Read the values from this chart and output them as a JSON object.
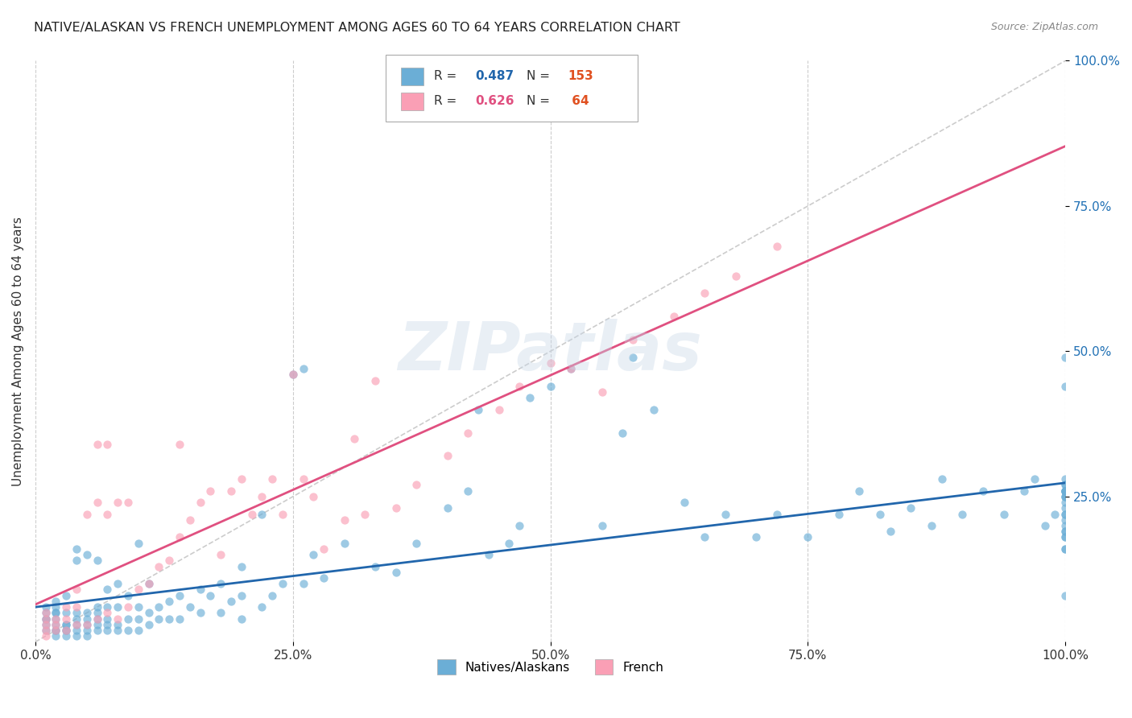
{
  "title": "NATIVE/ALASKAN VS FRENCH UNEMPLOYMENT AMONG AGES 60 TO 64 YEARS CORRELATION CHART",
  "source": "Source: ZipAtlas.com",
  "ylabel": "Unemployment Among Ages 60 to 64 years",
  "xlim": [
    0,
    1.0
  ],
  "ylim": [
    0,
    1.0
  ],
  "xtick_labels": [
    "0.0%",
    "25.0%",
    "50.0%",
    "75.0%",
    "100.0%"
  ],
  "xtick_values": [
    0.0,
    0.25,
    0.5,
    0.75,
    1.0
  ],
  "right_ytick_labels": [
    "25.0%",
    "50.0%",
    "75.0%",
    "100.0%"
  ],
  "right_ytick_values": [
    0.25,
    0.5,
    0.75,
    1.0
  ],
  "watermark": "ZIPatlas",
  "legend_label1": "Natives/Alaskans",
  "legend_label2": "French",
  "R1": 0.487,
  "N1": 153,
  "R2": 0.626,
  "N2": 64,
  "color_blue": "#6baed6",
  "color_pink": "#fa9fb5",
  "color_diagonal": "#cccccc",
  "color_blue_line": "#2166ac",
  "color_pink_line": "#e05080",
  "scatter_blue_alpha": 0.65,
  "scatter_pink_alpha": 0.65,
  "native_x": [
    0.01,
    0.01,
    0.01,
    0.01,
    0.01,
    0.01,
    0.02,
    0.02,
    0.02,
    0.02,
    0.02,
    0.02,
    0.02,
    0.02,
    0.02,
    0.03,
    0.03,
    0.03,
    0.03,
    0.03,
    0.03,
    0.03,
    0.04,
    0.04,
    0.04,
    0.04,
    0.04,
    0.04,
    0.04,
    0.05,
    0.05,
    0.05,
    0.05,
    0.05,
    0.05,
    0.06,
    0.06,
    0.06,
    0.06,
    0.06,
    0.06,
    0.07,
    0.07,
    0.07,
    0.07,
    0.07,
    0.08,
    0.08,
    0.08,
    0.08,
    0.09,
    0.09,
    0.09,
    0.1,
    0.1,
    0.1,
    0.1,
    0.11,
    0.11,
    0.11,
    0.12,
    0.12,
    0.13,
    0.13,
    0.14,
    0.14,
    0.15,
    0.16,
    0.16,
    0.17,
    0.18,
    0.18,
    0.19,
    0.2,
    0.2,
    0.2,
    0.22,
    0.22,
    0.23,
    0.24,
    0.25,
    0.26,
    0.26,
    0.27,
    0.28,
    0.3,
    0.33,
    0.35,
    0.37,
    0.4,
    0.42,
    0.43,
    0.44,
    0.46,
    0.47,
    0.48,
    0.5,
    0.52,
    0.55,
    0.57,
    0.58,
    0.6,
    0.63,
    0.65,
    0.67,
    0.7,
    0.72,
    0.75,
    0.78,
    0.8,
    0.82,
    0.83,
    0.85,
    0.87,
    0.88,
    0.9,
    0.92,
    0.94,
    0.96,
    0.97,
    0.98,
    0.99,
    1.0,
    1.0,
    1.0,
    1.0,
    1.0,
    1.0,
    1.0,
    1.0,
    1.0,
    1.0,
    1.0,
    1.0,
    1.0,
    1.0,
    1.0,
    1.0,
    1.0,
    1.0,
    1.0,
    1.0,
    1.0,
    1.0,
    1.0,
    1.0,
    1.0,
    1.0,
    1.0
  ],
  "native_y": [
    0.02,
    0.03,
    0.04,
    0.04,
    0.05,
    0.06,
    0.01,
    0.02,
    0.02,
    0.03,
    0.04,
    0.05,
    0.05,
    0.06,
    0.07,
    0.01,
    0.02,
    0.02,
    0.03,
    0.03,
    0.05,
    0.08,
    0.01,
    0.02,
    0.03,
    0.04,
    0.05,
    0.14,
    0.16,
    0.01,
    0.02,
    0.03,
    0.04,
    0.05,
    0.15,
    0.02,
    0.03,
    0.04,
    0.05,
    0.06,
    0.14,
    0.02,
    0.03,
    0.04,
    0.06,
    0.09,
    0.02,
    0.03,
    0.06,
    0.1,
    0.02,
    0.04,
    0.08,
    0.02,
    0.04,
    0.06,
    0.17,
    0.03,
    0.05,
    0.1,
    0.04,
    0.06,
    0.04,
    0.07,
    0.04,
    0.08,
    0.06,
    0.05,
    0.09,
    0.08,
    0.05,
    0.1,
    0.07,
    0.04,
    0.08,
    0.13,
    0.06,
    0.22,
    0.08,
    0.1,
    0.46,
    0.47,
    0.1,
    0.15,
    0.11,
    0.17,
    0.13,
    0.12,
    0.17,
    0.23,
    0.26,
    0.4,
    0.15,
    0.17,
    0.2,
    0.42,
    0.44,
    0.47,
    0.2,
    0.36,
    0.49,
    0.4,
    0.24,
    0.18,
    0.22,
    0.18,
    0.22,
    0.18,
    0.22,
    0.26,
    0.22,
    0.19,
    0.23,
    0.2,
    0.28,
    0.22,
    0.26,
    0.22,
    0.26,
    0.28,
    0.2,
    0.22,
    0.26,
    0.21,
    0.23,
    0.22,
    0.24,
    0.25,
    0.26,
    0.27,
    0.25,
    0.26,
    0.26,
    0.27,
    0.25,
    0.26,
    0.26,
    0.28,
    0.18,
    0.19,
    0.2,
    0.22,
    0.16,
    0.18,
    0.19,
    0.08,
    0.44,
    0.49,
    0.16
  ],
  "french_x": [
    0.01,
    0.01,
    0.01,
    0.01,
    0.01,
    0.02,
    0.02,
    0.02,
    0.03,
    0.03,
    0.03,
    0.04,
    0.04,
    0.04,
    0.05,
    0.05,
    0.06,
    0.06,
    0.06,
    0.07,
    0.07,
    0.07,
    0.08,
    0.08,
    0.09,
    0.09,
    0.1,
    0.11,
    0.12,
    0.13,
    0.14,
    0.14,
    0.15,
    0.16,
    0.17,
    0.18,
    0.19,
    0.2,
    0.21,
    0.22,
    0.23,
    0.24,
    0.25,
    0.26,
    0.27,
    0.28,
    0.3,
    0.31,
    0.32,
    0.33,
    0.35,
    0.37,
    0.4,
    0.42,
    0.45,
    0.47,
    0.5,
    0.52,
    0.55,
    0.58,
    0.62,
    0.65,
    0.68,
    0.72
  ],
  "french_y": [
    0.01,
    0.02,
    0.03,
    0.04,
    0.05,
    0.02,
    0.03,
    0.04,
    0.02,
    0.04,
    0.06,
    0.03,
    0.06,
    0.09,
    0.03,
    0.22,
    0.04,
    0.24,
    0.34,
    0.05,
    0.22,
    0.34,
    0.04,
    0.24,
    0.06,
    0.24,
    0.09,
    0.1,
    0.13,
    0.14,
    0.18,
    0.34,
    0.21,
    0.24,
    0.26,
    0.15,
    0.26,
    0.28,
    0.22,
    0.25,
    0.28,
    0.22,
    0.46,
    0.28,
    0.25,
    0.16,
    0.21,
    0.35,
    0.22,
    0.45,
    0.23,
    0.27,
    0.32,
    0.36,
    0.4,
    0.44,
    0.48,
    0.47,
    0.43,
    0.52,
    0.56,
    0.6,
    0.63,
    0.68
  ]
}
